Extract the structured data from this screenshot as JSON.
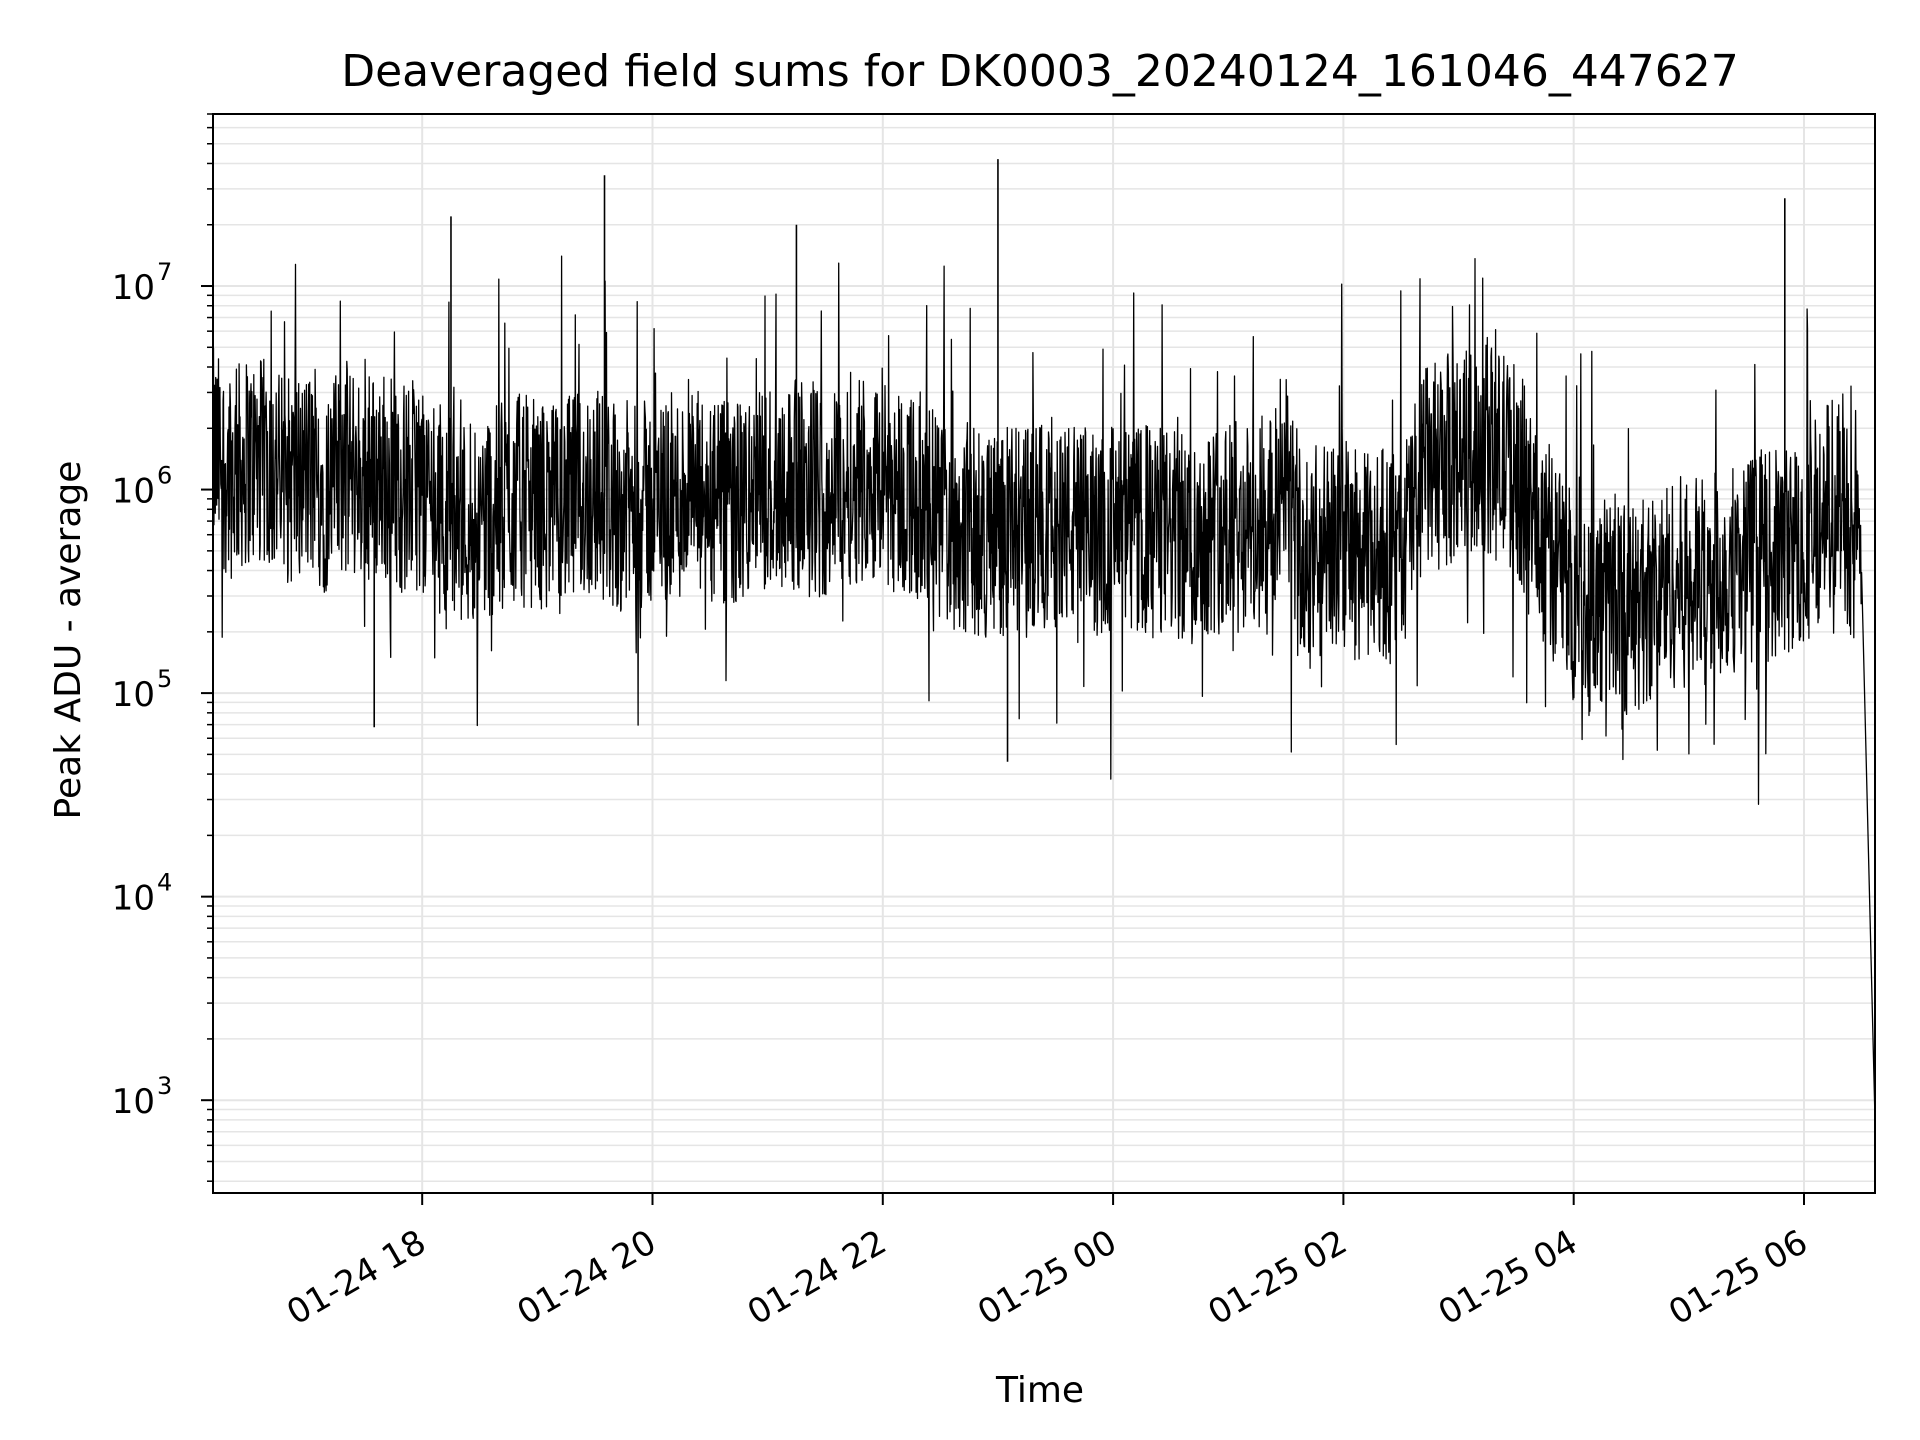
{
  "chart_data": {
    "type": "line",
    "title": "Deaveraged field sums for DK0003_20240124_161046_447627",
    "xlabel": "Time",
    "ylabel": "Peak ADU - average",
    "yscale": "log",
    "ylim": [
      350,
      70000000
    ],
    "xlim": [
      "2024-01-24 16:11",
      "2024-01-25 06:37"
    ],
    "grid": true,
    "line_color": "#000000",
    "grid_color": "#e5e5e5",
    "x_ticks": [
      {
        "value": "2024-01-24 18:00",
        "label": "01-24 18"
      },
      {
        "value": "2024-01-24 20:00",
        "label": "01-24 20"
      },
      {
        "value": "2024-01-24 22:00",
        "label": "01-24 22"
      },
      {
        "value": "2024-01-25 00:00",
        "label": "01-25 00"
      },
      {
        "value": "2024-01-25 02:00",
        "label": "01-25 02"
      },
      {
        "value": "2024-01-25 04:00",
        "label": "01-25 04"
      },
      {
        "value": "2024-01-25 06:00",
        "label": "01-25 06"
      }
    ],
    "y_ticks": [
      {
        "value": 1000,
        "base": "10",
        "exp": "3"
      },
      {
        "value": 10000,
        "base": "10",
        "exp": "4"
      },
      {
        "value": 100000,
        "base": "10",
        "exp": "5"
      },
      {
        "value": 1000000,
        "base": "10",
        "exp": "6"
      },
      {
        "value": 10000000,
        "base": "10",
        "exp": "7"
      }
    ],
    "series": [
      {
        "x": [
          "2024-01-24 16:11",
          "2024-01-24 16:20",
          "2024-01-24 16:30",
          "2024-01-24 16:40",
          "2024-01-24 16:50",
          "2024-01-24 17:00",
          "2024-01-24 17:10",
          "2024-01-24 17:20",
          "2024-01-24 17:30",
          "2024-01-24 17:40",
          "2024-01-24 17:50",
          "2024-01-24 18:00",
          "2024-01-24 18:10",
          "2024-01-24 18:20",
          "2024-01-24 18:30",
          "2024-01-24 18:40",
          "2024-01-24 18:50",
          "2024-01-24 19:00",
          "2024-01-24 19:10",
          "2024-01-24 19:20",
          "2024-01-24 19:30",
          "2024-01-24 19:40",
          "2024-01-24 19:50",
          "2024-01-24 20:00",
          "2024-01-24 20:10",
          "2024-01-24 20:20",
          "2024-01-24 20:30",
          "2024-01-24 20:40",
          "2024-01-24 20:50",
          "2024-01-24 21:00",
          "2024-01-24 21:10",
          "2024-01-24 21:20",
          "2024-01-24 21:30",
          "2024-01-24 21:40",
          "2024-01-24 21:50",
          "2024-01-24 22:00",
          "2024-01-24 22:10",
          "2024-01-24 22:20",
          "2024-01-24 22:30",
          "2024-01-24 22:40",
          "2024-01-24 22:50",
          "2024-01-24 23:00",
          "2024-01-24 23:10",
          "2024-01-24 23:20",
          "2024-01-24 23:30",
          "2024-01-24 23:40",
          "2024-01-24 23:50",
          "2024-01-25 00:00",
          "2024-01-25 00:10",
          "2024-01-25 00:20",
          "2024-01-25 00:30",
          "2024-01-25 00:40",
          "2024-01-25 00:50",
          "2024-01-25 01:00",
          "2024-01-25 01:10",
          "2024-01-25 01:20",
          "2024-01-25 01:30",
          "2024-01-25 01:40",
          "2024-01-25 01:50",
          "2024-01-25 02:00",
          "2024-01-25 02:10",
          "2024-01-25 02:20",
          "2024-01-25 02:30",
          "2024-01-25 02:40",
          "2024-01-25 02:50",
          "2024-01-25 03:00",
          "2024-01-25 03:10",
          "2024-01-25 03:20",
          "2024-01-25 03:30",
          "2024-01-25 03:40",
          "2024-01-25 03:50",
          "2024-01-25 04:00",
          "2024-01-25 04:10",
          "2024-01-25 04:20",
          "2024-01-25 04:30",
          "2024-01-25 04:40",
          "2024-01-25 04:50",
          "2024-01-25 05:00",
          "2024-01-25 05:10",
          "2024-01-25 05:20",
          "2024-01-25 05:30",
          "2024-01-25 05:40",
          "2024-01-25 05:50",
          "2024-01-25 06:00",
          "2024-01-25 06:10",
          "2024-01-25 06:20",
          "2024-01-25 06:30",
          "2024-01-25 06:37"
        ],
        "y": [
          1500000,
          1200000,
          1400000,
          1300000,
          1100000,
          1200000,
          1000000,
          1300000,
          1100000,
          1200000,
          1000000,
          1100000,
          800000,
          700000,
          750000,
          800000,
          900000,
          850000,
          800000,
          900000,
          1000000,
          850000,
          800000,
          850000,
          900000,
          950000,
          850000,
          800000,
          900000,
          1000000,
          1100000,
          1000000,
          950000,
          1100000,
          1200000,
          1100000,
          1000000,
          900000,
          700000,
          650000,
          600000,
          650000,
          600000,
          650000,
          700000,
          650000,
          600000,
          650000,
          600000,
          650000,
          600000,
          550000,
          650000,
          650000,
          650000,
          600000,
          1200000,
          350000,
          500000,
          550000,
          450000,
          500000,
          450000,
          1200000,
          1300000,
          1500000,
          1600000,
          1500000,
          1300000,
          700000,
          450000,
          300000,
          250000,
          300000,
          250000,
          300000,
          350000,
          350000,
          350000,
          400000,
          450000,
          450000,
          500000,
          550000,
          800000,
          1000000,
          300000,
          800
        ],
        "spikes": [
          {
            "x": "2024-01-24 19:35",
            "y": 35000000
          },
          {
            "x": "2024-01-24 23:00",
            "y": 42000000
          },
          {
            "x": "2024-01-24 18:15",
            "y": 22000000
          },
          {
            "x": "2024-01-24 21:15",
            "y": 20000000
          },
          {
            "x": "2024-01-25 05:50",
            "y": 27000000
          },
          {
            "x": "2024-01-24 23:05",
            "y": 46000
          },
          {
            "x": "2024-01-24 17:35",
            "y": 68000
          }
        ]
      }
    ]
  }
}
